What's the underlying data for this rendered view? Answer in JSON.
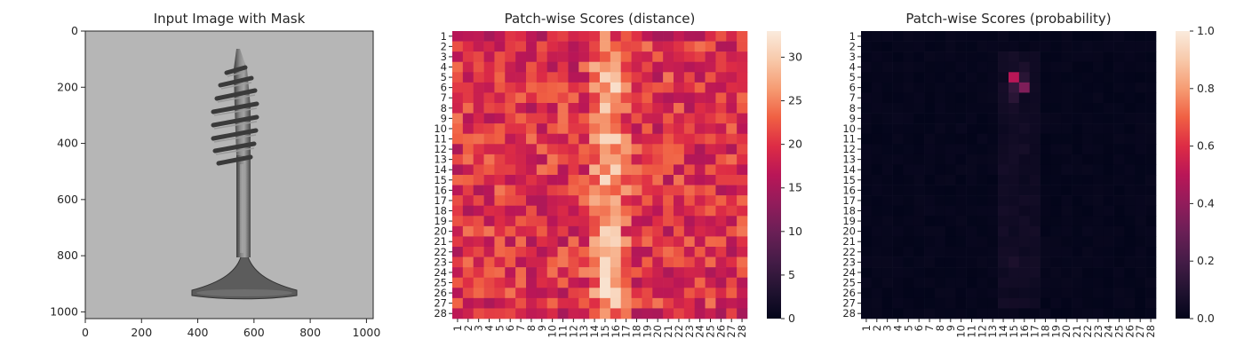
{
  "chart_data": [
    {
      "type": "image",
      "title": "Input Image with Mask",
      "xticks": [
        "0",
        "200",
        "400",
        "600",
        "800",
        "1000"
      ],
      "yticks": [
        "0",
        "200",
        "400",
        "600",
        "800",
        "1000"
      ],
      "xlim": [
        0,
        1024
      ],
      "ylim": [
        1024,
        0
      ],
      "image_subject": "grayscale photo of a metal wood screw on a light gray background"
    },
    {
      "type": "heatmap",
      "title": "Patch-wise Scores (distance)",
      "rows": [
        "1",
        "2",
        "3",
        "4",
        "5",
        "6",
        "7",
        "8",
        "9",
        "10",
        "11",
        "12",
        "13",
        "14",
        "15",
        "16",
        "17",
        "18",
        "19",
        "20",
        "21",
        "22",
        "23",
        "24",
        "25",
        "26",
        "27",
        "28"
      ],
      "cols": [
        "1",
        "2",
        "3",
        "4",
        "5",
        "6",
        "7",
        "8",
        "9",
        "10",
        "11",
        "12",
        "13",
        "14",
        "15",
        "16",
        "17",
        "18",
        "19",
        "20",
        "21",
        "22",
        "23",
        "24",
        "25",
        "26",
        "27",
        "28"
      ],
      "colorbar_ticks": [
        "0",
        "5",
        "10",
        "15",
        "20",
        "25",
        "30"
      ],
      "vmin": 0,
      "vmax": 33,
      "colormap": "rocket"
    },
    {
      "type": "heatmap",
      "title": "Patch-wise Scores (probability)",
      "rows": [
        "1",
        "2",
        "3",
        "4",
        "5",
        "6",
        "7",
        "8",
        "9",
        "10",
        "11",
        "12",
        "13",
        "14",
        "15",
        "16",
        "17",
        "18",
        "19",
        "20",
        "21",
        "22",
        "23",
        "24",
        "25",
        "26",
        "27",
        "28"
      ],
      "cols": [
        "1",
        "2",
        "3",
        "4",
        "5",
        "6",
        "7",
        "8",
        "9",
        "10",
        "11",
        "12",
        "13",
        "14",
        "15",
        "16",
        "17",
        "18",
        "19",
        "20",
        "21",
        "22",
        "23",
        "24",
        "25",
        "26",
        "27",
        "28"
      ],
      "colorbar_ticks": [
        "0.0",
        "0.2",
        "0.4",
        "0.6",
        "0.8",
        "1.0"
      ],
      "vmin": 0,
      "vmax": 1,
      "colormap": "rocket",
      "peak_cells": [
        {
          "row": 5,
          "col": 15,
          "value": 0.5
        },
        {
          "row": 6,
          "col": 16,
          "value": 0.35
        },
        {
          "row": 5,
          "col": 16,
          "value": 0.12
        },
        {
          "row": 6,
          "col": 15,
          "value": 0.15
        },
        {
          "row": 7,
          "col": 15,
          "value": 0.12
        },
        {
          "row": 4,
          "col": 16,
          "value": 0.08
        },
        {
          "row": 8,
          "col": 15,
          "value": 0.06
        },
        {
          "row": 23,
          "col": 15,
          "value": 0.08
        },
        {
          "row": 22,
          "col": 15,
          "value": 0.05
        },
        {
          "row": 24,
          "col": 15,
          "value": 0.05
        }
      ]
    }
  ],
  "colors": {
    "background": "#ffffff",
    "axis": "#262626",
    "photo_background": "#b6b6b6",
    "screw_metal": "#6e6e6e"
  }
}
